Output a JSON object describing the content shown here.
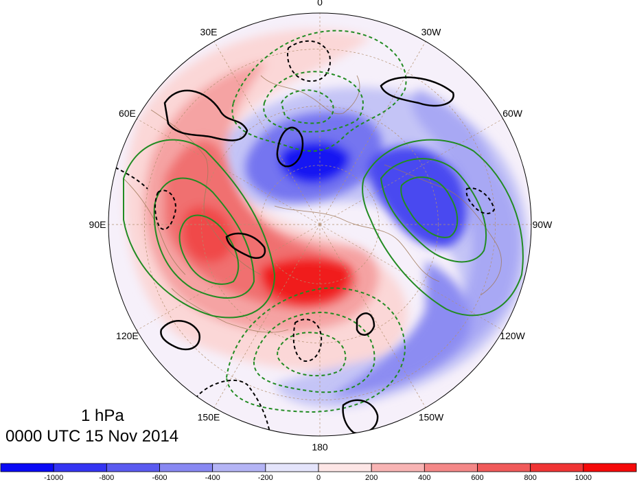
{
  "map": {
    "projection": "north-polar-stereographic",
    "longitude_labels": [
      {
        "lon": 0,
        "text": "0"
      },
      {
        "lon": 30,
        "text": "30W"
      },
      {
        "lon": 60,
        "text": "60W"
      },
      {
        "lon": 90,
        "text": "90W"
      },
      {
        "lon": 120,
        "text": "120W"
      },
      {
        "lon": 150,
        "text": "150W"
      },
      {
        "lon": 180,
        "text": "180"
      },
      {
        "lon": 210,
        "text": "150E"
      },
      {
        "lon": 240,
        "text": "120E"
      },
      {
        "lon": 270,
        "text": "90E"
      },
      {
        "lon": 300,
        "text": "60E"
      },
      {
        "lon": 330,
        "text": "30E"
      }
    ],
    "field": "shaded anomaly (red positive, blue negative) with green and black contours"
  },
  "titles": {
    "level": "1 hPa",
    "time": "0000 UTC 15 Nov 2014"
  },
  "colorbar": {
    "tick_labels": [
      "-1000",
      "-800",
      "-600",
      "-400",
      "-200",
      "0",
      "200",
      "400",
      "600",
      "800",
      "1000"
    ],
    "colors": [
      "#0a0af5",
      "#3434f2",
      "#5a5af0",
      "#8888f2",
      "#b4b4f5",
      "#e4e4fb",
      "#fde6e6",
      "#f8b4b4",
      "#f48888",
      "#f05a5a",
      "#f03434",
      "#f50a0a"
    ]
  }
}
